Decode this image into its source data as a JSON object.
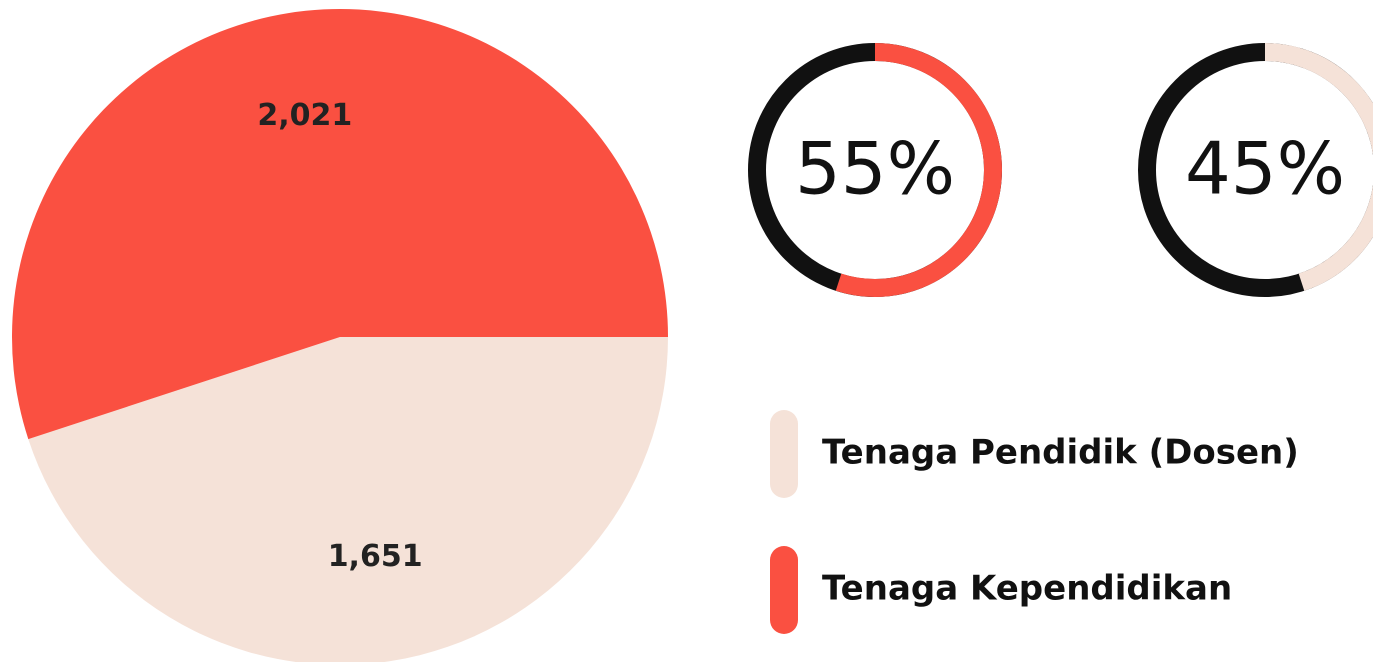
{
  "chart_data": [
    {
      "type": "pie",
      "categories": [
        "Tenaga Pendidik (Dosen)",
        "Tenaga Kependidikan"
      ],
      "values": [
        1651,
        2021
      ],
      "value_labels": [
        "1,651",
        "2,021"
      ],
      "colors": [
        "#f5e2d8",
        "#fa5041"
      ]
    },
    {
      "type": "donut",
      "values": [
        55,
        45
      ],
      "value_labels": [
        "55%",
        "45%"
      ],
      "colors": [
        "#fa5041",
        "#f5e2d8"
      ],
      "track_color": "#111111"
    }
  ]
}
